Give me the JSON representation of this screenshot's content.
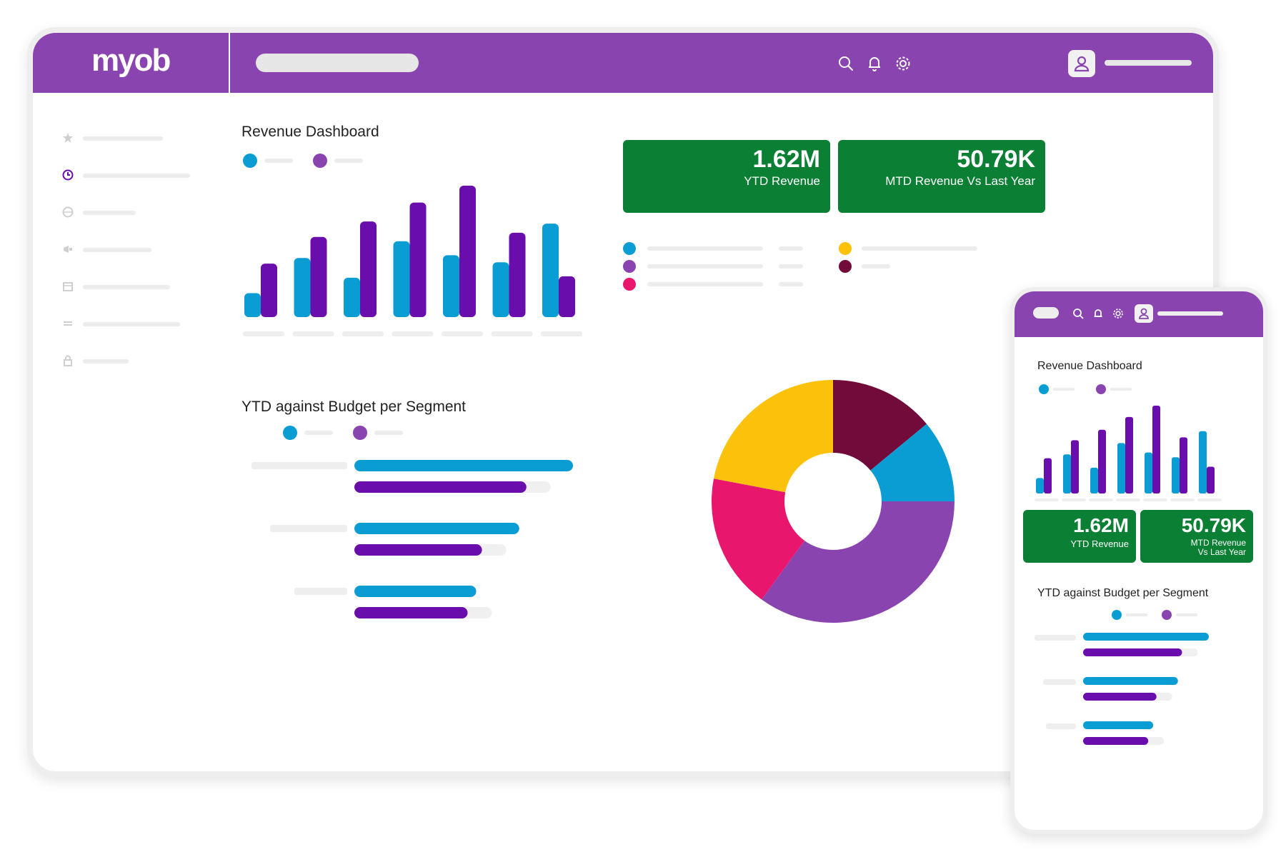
{
  "app": {
    "logo": "myob"
  },
  "topbar": {
    "icons": [
      "search-icon",
      "bell-icon",
      "gear-icon",
      "user-icon"
    ]
  },
  "sidebar": {
    "icons": [
      "star-icon",
      "clock-icon",
      "globe-icon",
      "megaphone-icon",
      "calendar-icon",
      "swap-icon",
      "lock-icon"
    ],
    "active_index": 1
  },
  "revenue_card": {
    "title": "Revenue Dashboard"
  },
  "kpis": [
    {
      "value": "1.62M",
      "label": "YTD Revenue"
    },
    {
      "value": "50.79K",
      "label": "MTD Revenue Vs Last Year"
    }
  ],
  "budget_card": {
    "title": "YTD against Budget per Segment"
  },
  "mobile": {
    "revenue_title": "Revenue Dashboard",
    "kpis": [
      {
        "value": "1.62M",
        "label": "YTD Revenue"
      },
      {
        "value": "50.79K",
        "label_line1": "MTD Revenue",
        "label_line2": "Vs Last Year"
      }
    ],
    "budget_title": "YTD against Budget per Segment"
  },
  "colors": {
    "brand_purple": "#8a44b0",
    "series_blue": "#0a9dd4",
    "series_purple": "#6a0dad",
    "kpi_green": "#0b8034",
    "pie_yellow": "#fcc10a",
    "pie_maroon": "#720b3a",
    "pie_pink": "#e8166d",
    "pie_purple": "#8a44b0"
  },
  "chart_data": [
    {
      "type": "bar",
      "categories": [
        "",
        "",
        "",
        "",
        "",
        "",
        ""
      ],
      "series": [
        {
          "values": [
            28,
            78,
            50,
            102,
            82,
            72,
            127
          ]
        },
        {
          "values": [
            70,
            108,
            130,
            157,
            181,
            114,
            52
          ]
        }
      ]
    },
    {
      "type": "bar",
      "categories": [
        "",
        "",
        ""
      ],
      "series": [
        {
          "values": [
            305,
            230,
            170
          ]
        },
        {
          "values": [
            240,
            178,
            158
          ]
        }
      ]
    },
    {
      "type": "pie",
      "values": [
        14,
        11,
        35,
        18,
        22
      ],
      "colors": [
        "#720b3a",
        "#0a9dd4",
        "#8a44b0",
        "#e8166d",
        "#fcc10a"
      ]
    }
  ]
}
